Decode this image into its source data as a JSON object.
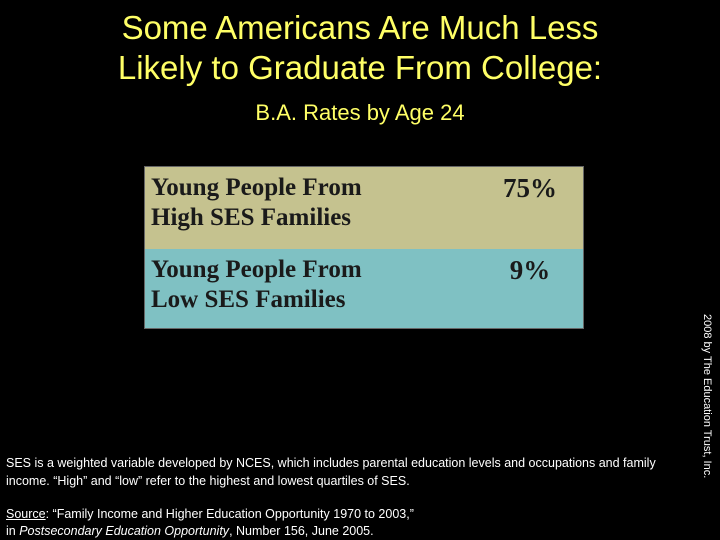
{
  "slide": {
    "title_line1": "Some Americans Are Much Less",
    "title_line2": "Likely to Graduate From College:",
    "subtitle": "B.A. Rates by Age 24"
  },
  "table": {
    "rows": [
      {
        "label_line1": "Young People From",
        "label_line2": "High SES Families",
        "value": "75%"
      },
      {
        "label_line1": "Young People From",
        "label_line2": "Low SES Families",
        "value": "9%"
      }
    ],
    "colors": {
      "high_row": "#c5c28f",
      "low_row": "#7fc1c3"
    }
  },
  "credit": "2008 by The Education Trust, Inc.",
  "note": "SES is a weighted variable developed by NCES, which includes parental education levels and occupations and family income. “High” and “low” refer to the highest and lowest quartiles of SES.",
  "source": {
    "label": "Source",
    "text_a": ": “Family Income and Higher Education Opportunity 1970 to 2003,”",
    "text_b": "in ",
    "publication": "Postsecondary Education Opportunity",
    "text_c": ", Number 156, June 2005."
  }
}
